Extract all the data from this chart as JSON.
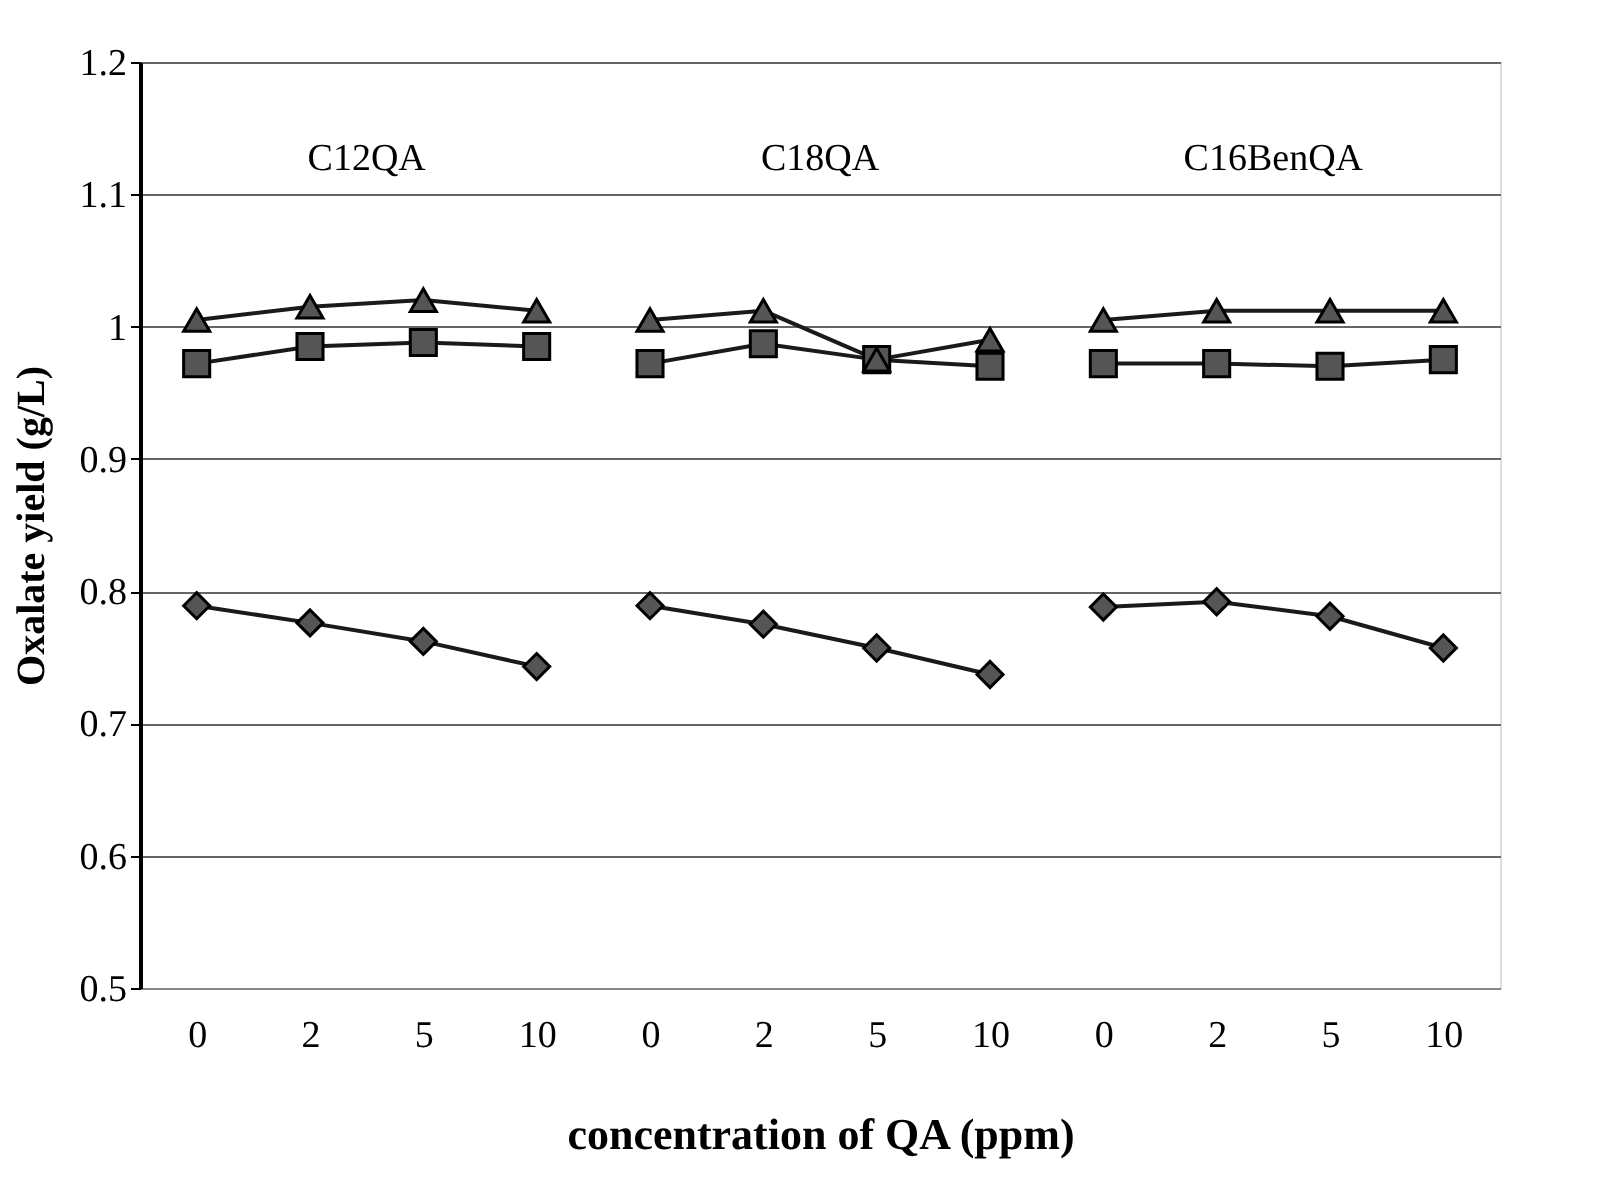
{
  "chart_data": {
    "type": "line",
    "xlabel": "concentration of QA (ppm)",
    "ylabel": "Oxalate yield (g/L)",
    "categories": [
      "0",
      "2",
      "5",
      "10",
      "0",
      "2",
      "5",
      "10",
      "0",
      "2",
      "5",
      "10"
    ],
    "annotations": [
      "C12QA",
      "C18QA",
      "C16BenQA"
    ],
    "series": [
      {
        "color": "#1a1a1a",
        "marker": "diamond",
        "values": [
          0.789,
          0.776,
          0.762,
          0.743,
          0.789,
          0.775,
          0.757,
          0.737,
          0.788,
          0.792,
          0.781,
          0.757
        ]
      },
      {
        "color": "#1a1a1a",
        "marker": "square",
        "values": [
          0.972,
          0.985,
          0.988,
          0.985,
          0.972,
          0.987,
          0.975,
          0.97,
          0.972,
          0.972,
          0.97,
          0.975
        ]
      },
      {
        "color": "#1a1a1a",
        "marker": "triangle",
        "values": [
          1.005,
          1.015,
          1.02,
          1.012,
          1.005,
          1.012,
          0.975,
          0.99,
          1.005,
          1.012,
          1.012,
          1.012
        ]
      }
    ],
    "ylim": [
      0.5,
      1.2
    ],
    "yticks": [
      0.5,
      0.6,
      0.7,
      0.8,
      0.9,
      1,
      1.1,
      1.2
    ],
    "grid": "y"
  }
}
